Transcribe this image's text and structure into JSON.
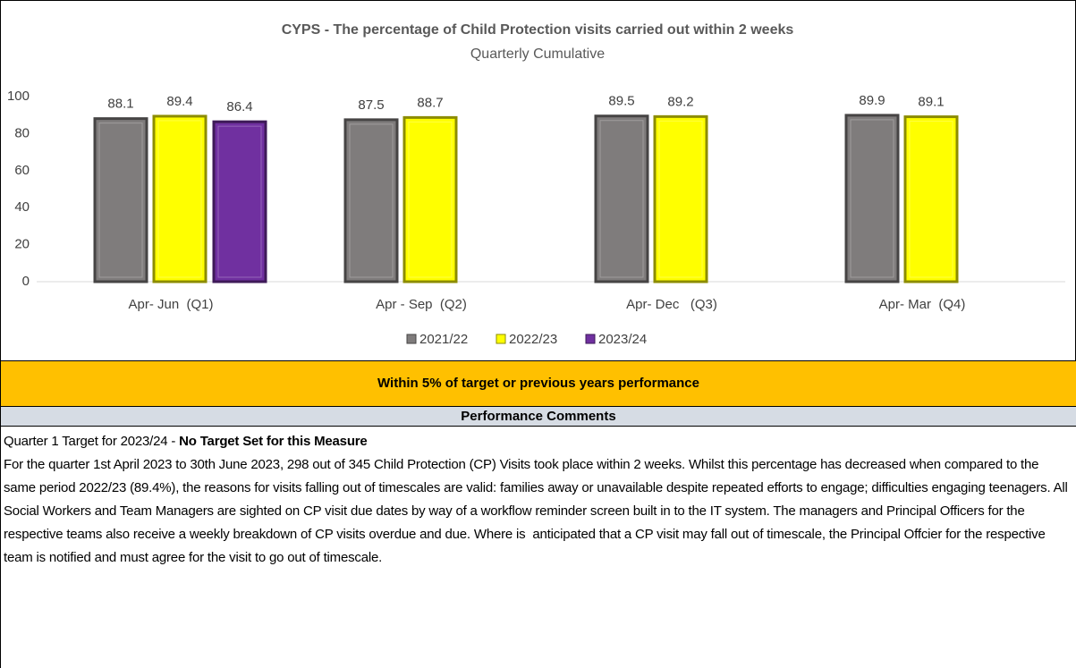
{
  "chart_data": {
    "type": "bar",
    "title": "CYPS - The percentage of Child Protection visits carried out within 2 weeks",
    "subtitle": "Quarterly Cumulative",
    "categories": [
      "Apr- Jun  (Q1)",
      "Apr - Sep  (Q2)",
      "Apr- Dec   (Q3)",
      "Apr- Mar  (Q4)"
    ],
    "series": [
      {
        "name": "2021/22",
        "color": "#7f7c7c",
        "values": [
          88.1,
          87.5,
          89.5,
          89.9
        ]
      },
      {
        "name": "2022/23",
        "color": "#ffff00",
        "values": [
          89.4,
          88.7,
          89.2,
          89.1
        ]
      },
      {
        "name": "2023/24",
        "color": "#7030a0",
        "values": [
          86.4,
          null,
          null,
          null
        ]
      }
    ],
    "ylim": [
      0,
      100
    ],
    "yticks": [
      0,
      20,
      40,
      60,
      80,
      100
    ],
    "grid": false,
    "legend": "bottom"
  },
  "status": "Within 5% of target or previous years performance",
  "comments": {
    "heading": "Performance Comments",
    "target_label": "Quarter 1 Target for 2023/24 - ",
    "target_value": "No Target Set for this Measure",
    "body": "For the quarter 1st April 2023 to 30th June 2023, 298 out of 345 Child Protection (CP) Visits took place within 2 weeks. Whilst this percentage has decreased when compared to the same period 2022/23 (89.4%), the reasons for visits falling out of timescales are valid: families away or unavailable despite repeated efforts to engage; difficulties engaging teenagers. All Social Workers and Team Managers are sighted on CP visit due dates by way of a workflow reminder screen built in to the IT system. The managers and Principal Officers for the respective teams also receive a weekly breakdown of CP visits overdue and due. Where is  anticipated that a CP visit may fall out of timescale, the Principal Offcier for the respective team is notified and must agree for the visit to go out of timescale."
  }
}
